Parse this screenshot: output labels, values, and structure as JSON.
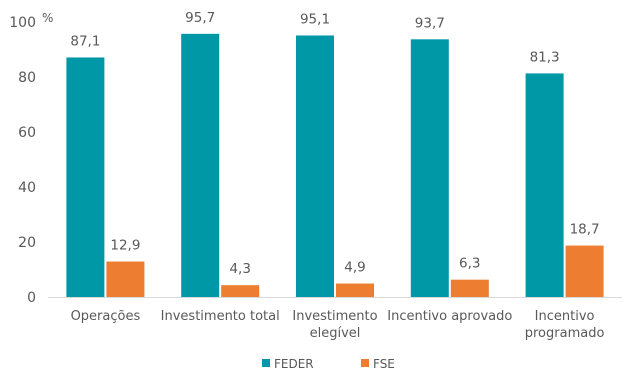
{
  "chart_data": {
    "type": "bar",
    "unit_label": "%",
    "categories": [
      [
        "Operações"
      ],
      [
        "Investimento total"
      ],
      [
        "Investimento",
        "elegível"
      ],
      [
        "Incentivo aprovado"
      ],
      [
        "Incentivo",
        "programado"
      ]
    ],
    "series": [
      {
        "name": "FEDER",
        "color": "#0097A7",
        "values": [
          87.1,
          95.7,
          95.1,
          93.7,
          81.3
        ],
        "labels": [
          "87,1",
          "95,7",
          "95,1",
          "93,7",
          "81,3"
        ]
      },
      {
        "name": "FSE",
        "color": "#ED7D31",
        "values": [
          12.9,
          4.3,
          4.9,
          6.3,
          18.7
        ],
        "labels": [
          "12,9",
          "4,3",
          "4,9",
          "6,3",
          "18,7"
        ]
      }
    ],
    "ylim": [
      0,
      100
    ],
    "yticks": [
      0,
      20,
      40,
      60,
      80,
      100
    ],
    "grid": false,
    "legend_position": "bottom"
  }
}
